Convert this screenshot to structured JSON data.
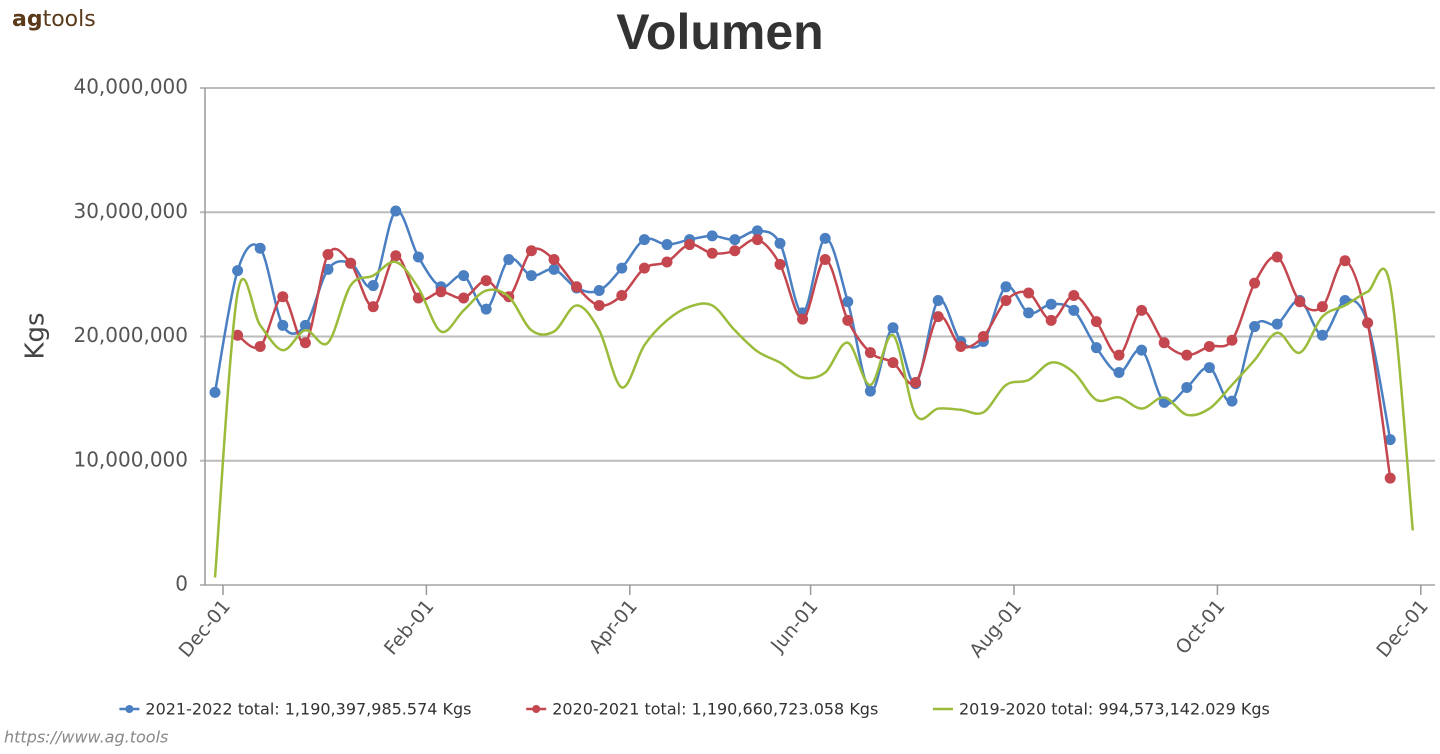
{
  "header": {
    "logo_bold": "ag",
    "logo_rest": "tools"
  },
  "chart_data": {
    "type": "line",
    "title": "Volumen",
    "y_label": "Kgs",
    "source": "https://www.ag.tools",
    "categories": [
      "Dec-01",
      null,
      null,
      null,
      null,
      null,
      null,
      null,
      null,
      "Feb-01",
      null,
      null,
      null,
      null,
      null,
      null,
      null,
      null,
      "Apr-01",
      null,
      null,
      null,
      null,
      null,
      null,
      null,
      "Jun-01",
      null,
      null,
      null,
      null,
      null,
      null,
      null,
      null,
      "Aug-01",
      null,
      null,
      null,
      null,
      null,
      null,
      null,
      null,
      "Oct-01",
      null,
      null,
      null,
      null,
      null,
      null,
      null,
      null,
      "Dec-01"
    ],
    "ylim": [
      0,
      40000000
    ],
    "yticks": [
      0,
      {
        "value": 10000000,
        "label": "10,000,000"
      },
      {
        "value": 20000000,
        "label": "20,000,000"
      },
      {
        "value": 30000000,
        "label": "30,000,000"
      },
      {
        "value": 40000000,
        "label": "40,000,000"
      }
    ],
    "grid": true,
    "smooth": true,
    "legend": "bottom",
    "series": [
      {
        "name": "2021-2022 total: 1,190,397,985.574 Kgs",
        "color": "#4a7fc1",
        "markers": true,
        "values": [
          15500000,
          25300000,
          27100000,
          20900000,
          20900000,
          25400000,
          25900000,
          24100000,
          30100000,
          26400000,
          24000000,
          24900000,
          22200000,
          26200000,
          24900000,
          25400000,
          23900000,
          23700000,
          25500000,
          27800000,
          27400000,
          27800000,
          28100000,
          27800000,
          28500000,
          27500000,
          21900000,
          27900000,
          22800000,
          15600000,
          20700000,
          16200000,
          22900000,
          19600000,
          19600000,
          24000000,
          21900000,
          22600000,
          22100000,
          19100000,
          17100000,
          18900000,
          14700000,
          15900000,
          17500000,
          14800000,
          20800000,
          21000000,
          22900000,
          20100000,
          22900000,
          21100000,
          11700000,
          null
        ]
      },
      {
        "name": "2020-2021 total: 1,190,660,723.058 Kgs",
        "color": "#c4474f",
        "markers": true,
        "values": [
          null,
          20100000,
          19200000,
          23200000,
          19500000,
          26600000,
          25900000,
          22400000,
          26500000,
          23100000,
          23600000,
          23100000,
          24500000,
          23200000,
          26900000,
          26200000,
          24000000,
          22500000,
          23300000,
          25500000,
          26000000,
          27400000,
          26700000,
          26900000,
          27800000,
          25800000,
          21400000,
          26200000,
          21300000,
          18700000,
          17900000,
          16300000,
          21600000,
          19200000,
          20000000,
          22900000,
          23500000,
          21300000,
          23300000,
          21200000,
          18500000,
          22100000,
          19500000,
          18500000,
          19200000,
          19700000,
          24300000,
          26400000,
          22800000,
          22400000,
          26100000,
          21100000,
          8600000,
          null
        ]
      },
      {
        "name": "2019-2020 total: 994,573,142.029 Kgs",
        "color": "#9bbb3b",
        "markers": false,
        "values": [
          600000,
          23500000,
          20900000,
          18900000,
          20500000,
          19500000,
          24100000,
          24900000,
          26000000,
          23900000,
          20400000,
          22100000,
          23700000,
          23200000,
          20500000,
          20400000,
          22500000,
          20500000,
          15900000,
          19300000,
          21300000,
          22400000,
          22500000,
          20500000,
          18800000,
          17900000,
          16700000,
          17100000,
          19500000,
          16100000,
          20100000,
          13700000,
          14200000,
          14100000,
          13900000,
          16100000,
          16500000,
          17900000,
          17100000,
          14900000,
          15100000,
          14200000,
          15100000,
          13700000,
          14200000,
          16100000,
          18100000,
          20300000,
          18700000,
          21600000,
          22500000,
          23600000,
          24100000,
          4400000
        ]
      }
    ]
  }
}
